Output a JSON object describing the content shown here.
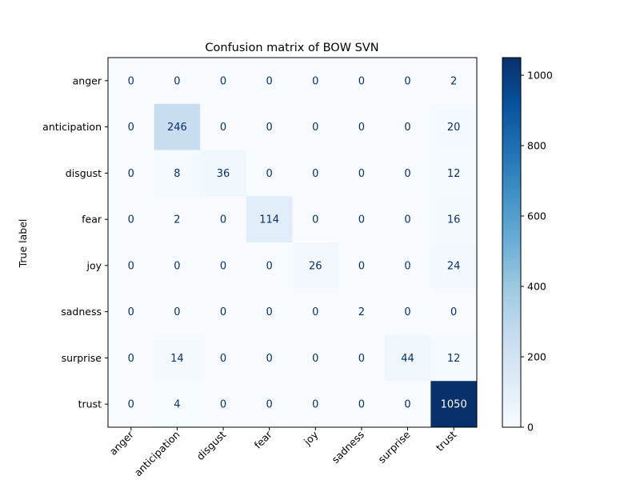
{
  "chart_data": {
    "type": "heatmap",
    "title": "Confusion matrix of BOW SVN",
    "ylabel": "True label",
    "xlabel": "",
    "x_labels": [
      "anger",
      "anticipation",
      "disgust",
      "fear",
      "joy",
      "sadness",
      "surprise",
      "trust"
    ],
    "y_labels": [
      "anger",
      "anticipation",
      "disgust",
      "fear",
      "joy",
      "sadness",
      "surprise",
      "trust"
    ],
    "matrix": [
      [
        0,
        0,
        0,
        0,
        0,
        0,
        0,
        2
      ],
      [
        0,
        246,
        0,
        0,
        0,
        0,
        0,
        20
      ],
      [
        0,
        8,
        36,
        0,
        0,
        0,
        0,
        12
      ],
      [
        0,
        2,
        0,
        114,
        0,
        0,
        0,
        16
      ],
      [
        0,
        0,
        0,
        0,
        26,
        0,
        0,
        24
      ],
      [
        0,
        0,
        0,
        0,
        0,
        2,
        0,
        0
      ],
      [
        0,
        14,
        0,
        0,
        0,
        0,
        44,
        12
      ],
      [
        0,
        4,
        0,
        0,
        0,
        0,
        0,
        1050
      ]
    ],
    "colorbar": {
      "colormap": "Blues",
      "min": 0,
      "max": 1050,
      "ticks": [
        0,
        200,
        400,
        600,
        800,
        1000
      ]
    },
    "grid": false,
    "legend": "colorbar-right"
  }
}
